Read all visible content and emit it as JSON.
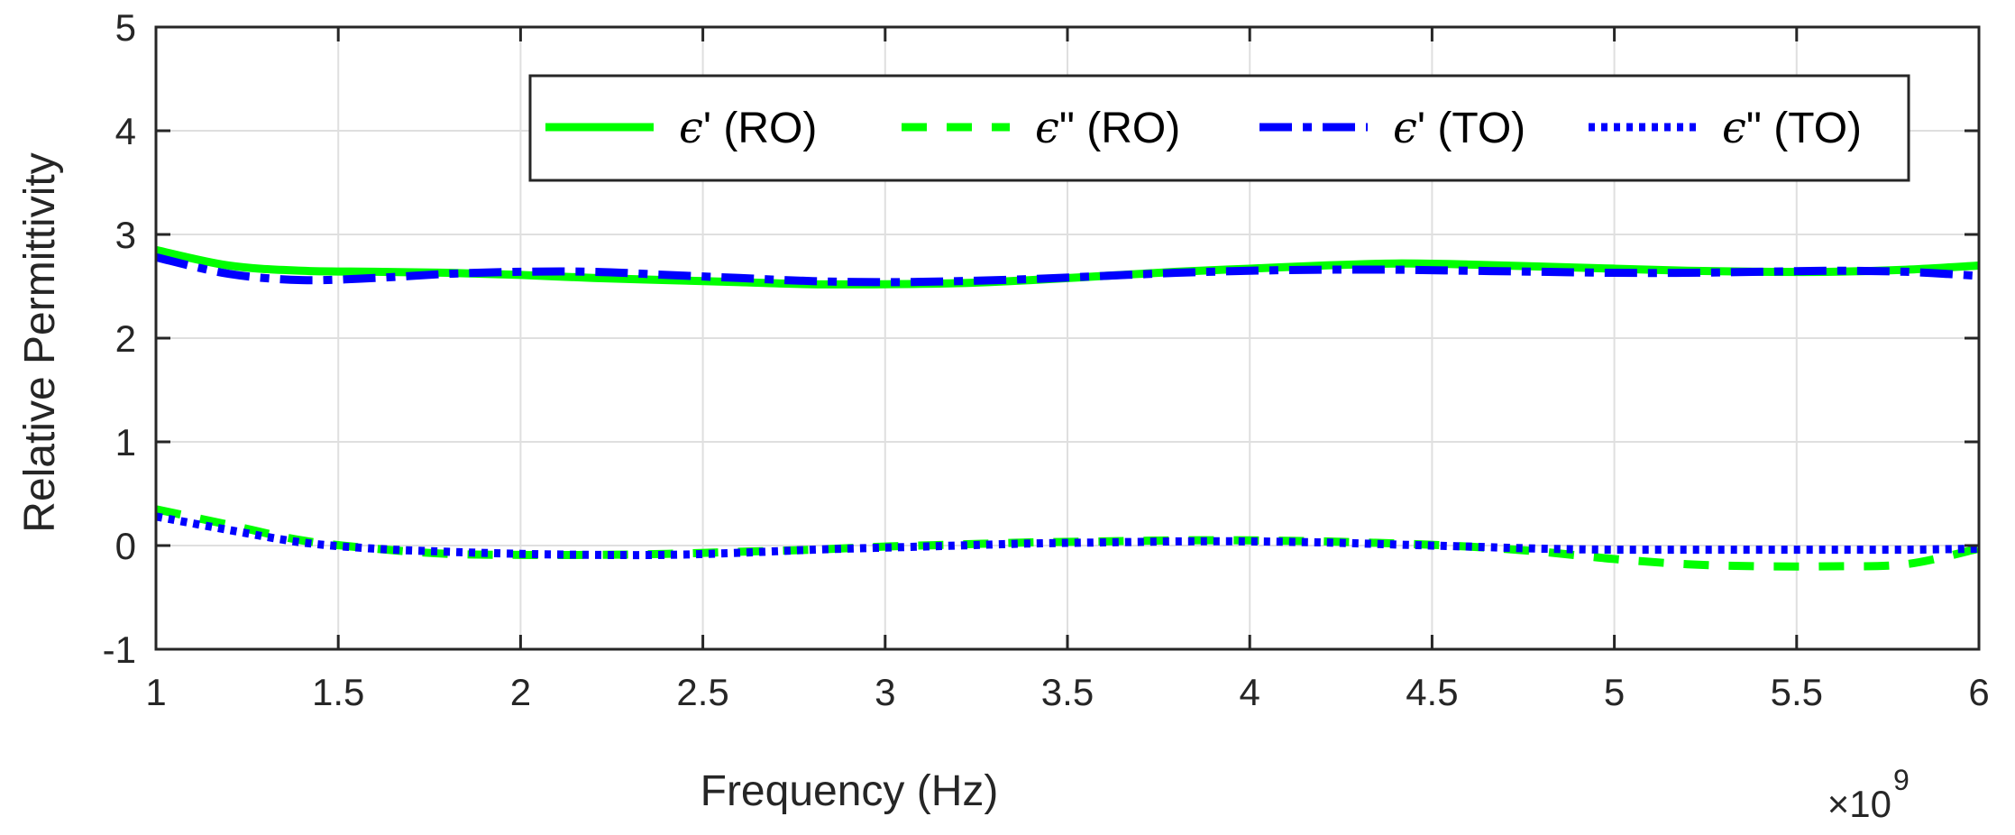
{
  "chart_data": {
    "type": "line",
    "title": "",
    "xlabel": "Frequency (Hz)",
    "ylabel": "Relative Permittivity",
    "x_multiplier": {
      "base": "×10",
      "exponent": "9"
    },
    "xlim": [
      1,
      6
    ],
    "ylim": [
      -1,
      5
    ],
    "grid": true,
    "legend_position": "top-right",
    "x_ticks": [
      1,
      1.5,
      2,
      2.5,
      3,
      3.5,
      4,
      4.5,
      5,
      5.5,
      6
    ],
    "x_tick_labels": [
      "1",
      "1.5",
      "2",
      "2.5",
      "3",
      "3.5",
      "4",
      "4.5",
      "5",
      "5.5",
      "6"
    ],
    "y_ticks": [
      -1,
      0,
      1,
      2,
      3,
      4,
      5
    ],
    "y_tick_labels": [
      "-1",
      "0",
      "1",
      "2",
      "3",
      "4",
      "5"
    ],
    "x": [
      1.0,
      1.2,
      1.4,
      1.6,
      1.8,
      2.0,
      2.2,
      2.4,
      2.6,
      2.8,
      3.0,
      3.2,
      3.4,
      3.6,
      3.8,
      4.0,
      4.2,
      4.4,
      4.6,
      4.8,
      5.0,
      5.2,
      5.4,
      5.6,
      5.8,
      6.0
    ],
    "series": [
      {
        "name": "ϵ' (RO)",
        "color": "#00ff00",
        "style": "solid",
        "values": [
          2.85,
          2.7,
          2.65,
          2.64,
          2.63,
          2.61,
          2.58,
          2.56,
          2.54,
          2.52,
          2.52,
          2.53,
          2.56,
          2.6,
          2.64,
          2.67,
          2.7,
          2.72,
          2.71,
          2.69,
          2.67,
          2.65,
          2.64,
          2.64,
          2.66,
          2.7
        ]
      },
      {
        "name": "ϵ'' (RO)",
        "color": "#00ff00",
        "style": "dashed",
        "values": [
          0.35,
          0.2,
          0.05,
          -0.03,
          -0.08,
          -0.09,
          -0.09,
          -0.08,
          -0.06,
          -0.04,
          -0.01,
          0.01,
          0.03,
          0.04,
          0.05,
          0.05,
          0.04,
          0.02,
          -0.01,
          -0.06,
          -0.13,
          -0.18,
          -0.2,
          -0.2,
          -0.18,
          -0.03
        ]
      },
      {
        "name": "ϵ' (TO)",
        "color": "#0000ff",
        "style": "dashdot",
        "values": [
          2.78,
          2.62,
          2.56,
          2.58,
          2.62,
          2.64,
          2.64,
          2.61,
          2.58,
          2.55,
          2.54,
          2.55,
          2.57,
          2.6,
          2.63,
          2.65,
          2.66,
          2.66,
          2.65,
          2.64,
          2.63,
          2.63,
          2.64,
          2.65,
          2.64,
          2.6
        ]
      },
      {
        "name": "ϵ'' (TO)",
        "color": "#0000ff",
        "style": "dotted",
        "values": [
          0.28,
          0.15,
          0.03,
          -0.03,
          -0.06,
          -0.08,
          -0.09,
          -0.09,
          -0.07,
          -0.04,
          -0.02,
          0.0,
          0.02,
          0.03,
          0.04,
          0.04,
          0.03,
          0.01,
          -0.01,
          -0.03,
          -0.04,
          -0.04,
          -0.04,
          -0.04,
          -0.04,
          -0.03
        ]
      }
    ],
    "legend_labels": [
      {
        "symbol": "ϵ",
        "rest": "' (RO)"
      },
      {
        "symbol": "ϵ",
        "rest": "\" (RO)"
      },
      {
        "symbol": "ϵ",
        "rest": "' (TO)"
      },
      {
        "symbol": "ϵ",
        "rest": "\" (TO)"
      }
    ]
  }
}
